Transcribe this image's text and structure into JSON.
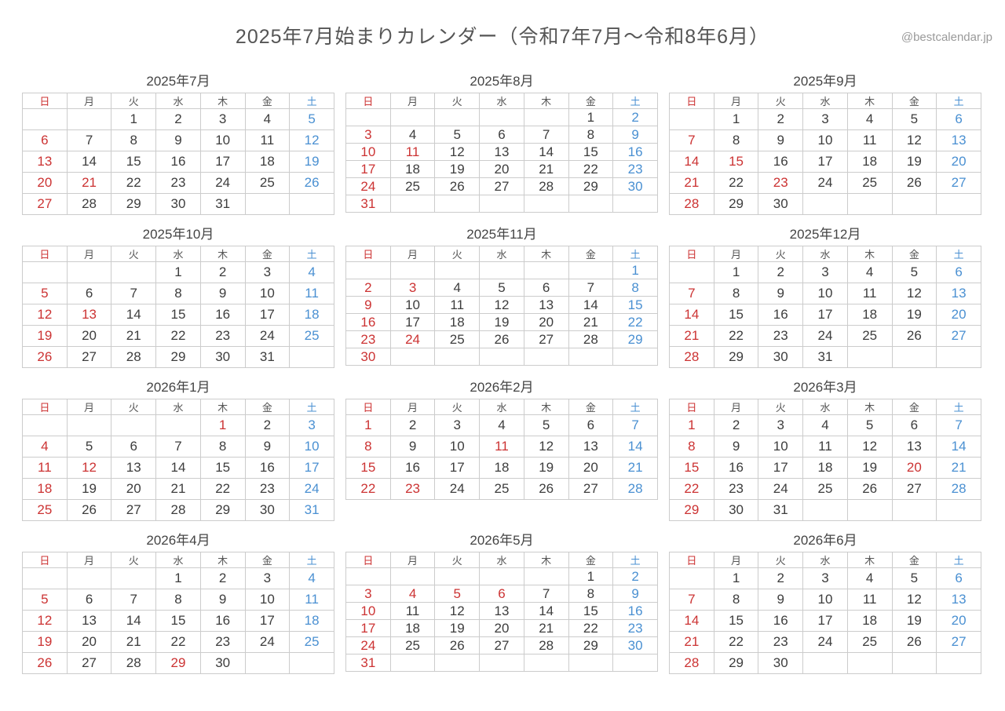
{
  "page": {
    "watermark": "@bestcalendar.jp",
    "title": "2025年7月始まりカレンダー（令和7年7月〜令和8年6月）"
  },
  "weekdays": [
    "日",
    "月",
    "火",
    "水",
    "木",
    "金",
    "土"
  ],
  "colors": {
    "sunday_and_holiday": "#cc3333",
    "saturday": "#4a90d2",
    "weekday_text": "#3d3d3d",
    "grid_border": "#cccccc",
    "title_text": "#555555",
    "watermark_text": "#9a9a9a"
  },
  "months": [
    {
      "id": "2025-07",
      "title": "2025年7月",
      "first_dow": 2,
      "days": 31,
      "holidays": [
        21
      ]
    },
    {
      "id": "2025-08",
      "title": "2025年8月",
      "first_dow": 5,
      "days": 31,
      "holidays": [
        11
      ]
    },
    {
      "id": "2025-09",
      "title": "2025年9月",
      "first_dow": 1,
      "days": 30,
      "holidays": [
        15,
        23
      ]
    },
    {
      "id": "2025-10",
      "title": "2025年10月",
      "first_dow": 3,
      "days": 31,
      "holidays": [
        13
      ]
    },
    {
      "id": "2025-11",
      "title": "2025年11月",
      "first_dow": 6,
      "days": 30,
      "holidays": [
        3,
        24
      ]
    },
    {
      "id": "2025-12",
      "title": "2025年12月",
      "first_dow": 1,
      "days": 31,
      "holidays": []
    },
    {
      "id": "2026-01",
      "title": "2026年1月",
      "first_dow": 4,
      "days": 31,
      "holidays": [
        1,
        12
      ]
    },
    {
      "id": "2026-02",
      "title": "2026年2月",
      "first_dow": 0,
      "days": 28,
      "holidays": [
        11,
        23
      ]
    },
    {
      "id": "2026-03",
      "title": "2026年3月",
      "first_dow": 0,
      "days": 31,
      "holidays": [
        20
      ]
    },
    {
      "id": "2026-04",
      "title": "2026年4月",
      "first_dow": 3,
      "days": 30,
      "holidays": [
        29
      ]
    },
    {
      "id": "2026-05",
      "title": "2026年5月",
      "first_dow": 5,
      "days": 31,
      "holidays": [
        4,
        5,
        6
      ]
    },
    {
      "id": "2026-06",
      "title": "2026年6月",
      "first_dow": 1,
      "days": 30,
      "holidays": []
    }
  ]
}
